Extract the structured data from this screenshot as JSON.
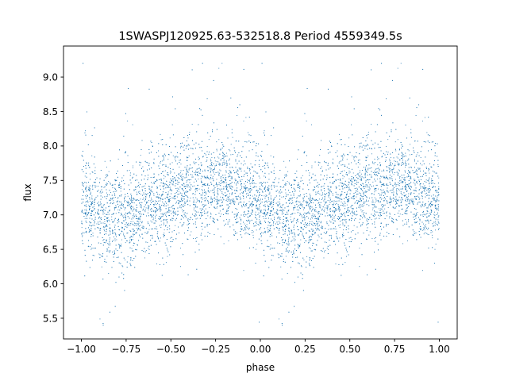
{
  "chart_data": {
    "type": "scatter",
    "title": "1SWASPJ120925.63-532518.8 Period 4559349.5s",
    "xlabel": "phase",
    "ylabel": "flux",
    "xlim": [
      -1.1,
      1.1
    ],
    "ylim": [
      5.2,
      9.45
    ],
    "x_ticks": [
      -1.0,
      -0.75,
      -0.5,
      -0.25,
      0.0,
      0.25,
      0.5,
      0.75,
      1.0
    ],
    "x_tick_labels": [
      "−1.00",
      "−0.75",
      "−0.50",
      "−0.25",
      "0.00",
      "0.25",
      "0.50",
      "0.75",
      "1.00"
    ],
    "y_ticks": [
      5.5,
      6.0,
      6.5,
      7.0,
      7.5,
      8.0,
      8.5,
      9.0
    ],
    "y_tick_labels": [
      "5.5",
      "6.0",
      "6.5",
      "7.0",
      "7.5",
      "8.0",
      "8.5",
      "9.0"
    ],
    "marker_color": "#1f77b4",
    "grid": false,
    "series": [
      {
        "phase_range": [
          -1.0,
          1.0
        ],
        "folded_twice": true,
        "median_flux_by_phase": [
          {
            "phase": 0.0,
            "flux": 7.2
          },
          {
            "phase": 0.1,
            "flux": 7.05
          },
          {
            "phase": 0.2,
            "flux": 6.95
          },
          {
            "phase": 0.3,
            "flux": 7.05
          },
          {
            "phase": 0.45,
            "flux": 7.25
          },
          {
            "phase": 0.6,
            "flux": 7.35
          },
          {
            "phase": 0.7,
            "flux": 7.4
          },
          {
            "phase": 0.8,
            "flux": 7.45
          },
          {
            "phase": 0.9,
            "flux": 7.3
          },
          {
            "phase": 1.0,
            "flux": 7.2
          }
        ],
        "typical_spread": 0.35,
        "flux_range": [
          5.4,
          9.2
        ],
        "point_count": 9000
      }
    ]
  }
}
